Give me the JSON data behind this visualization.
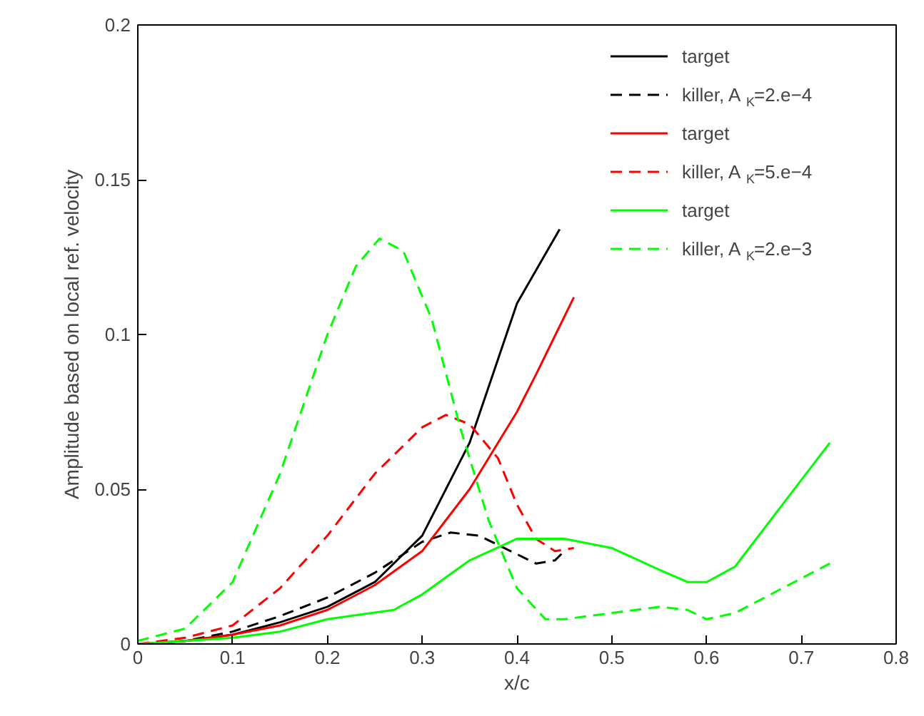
{
  "chart_data": {
    "type": "line",
    "xlabel": "x/c",
    "ylabel": "Amplitude based on local ref. velocity",
    "xlim": [
      0,
      0.8
    ],
    "ylim": [
      0,
      0.2
    ],
    "xticks": [
      0,
      0.1,
      0.2,
      0.3,
      0.4,
      0.5,
      0.6,
      0.7,
      0.8
    ],
    "yticks": [
      0,
      0.05,
      0.1,
      0.15,
      0.2
    ],
    "grid": false,
    "legend": "top right",
    "series": [
      {
        "name": "target",
        "color": "#000000",
        "line_style": "solid",
        "x": [
          0,
          0.05,
          0.1,
          0.15,
          0.2,
          0.25,
          0.3,
          0.35,
          0.4,
          0.445
        ],
        "values": [
          0,
          0.001,
          0.003,
          0.007,
          0.012,
          0.02,
          0.035,
          0.065,
          0.11,
          0.134
        ]
      },
      {
        "name": "killer, A$_{K}$=2.e−4",
        "color": "#000000",
        "line_style": "dashed",
        "x": [
          0,
          0.05,
          0.1,
          0.15,
          0.2,
          0.25,
          0.3,
          0.33,
          0.36,
          0.4,
          0.42,
          0.44,
          0.45
        ],
        "values": [
          0,
          0.001,
          0.004,
          0.009,
          0.015,
          0.023,
          0.033,
          0.036,
          0.035,
          0.029,
          0.026,
          0.027,
          0.03
        ]
      },
      {
        "name": "target",
        "color": "#ff0000",
        "line_style": "solid",
        "x": [
          0,
          0.05,
          0.1,
          0.15,
          0.2,
          0.25,
          0.3,
          0.35,
          0.4,
          0.42,
          0.46
        ],
        "values": [
          0,
          0.001,
          0.003,
          0.006,
          0.011,
          0.019,
          0.03,
          0.05,
          0.075,
          0.087,
          0.112
        ]
      },
      {
        "name": "killer, A$_{K}$=5.e−4",
        "color": "#ff0000",
        "line_style": "dashed",
        "x": [
          0,
          0.05,
          0.1,
          0.15,
          0.2,
          0.25,
          0.3,
          0.325,
          0.35,
          0.38,
          0.4,
          0.42,
          0.44,
          0.46
        ],
        "values": [
          0,
          0.002,
          0.006,
          0.018,
          0.035,
          0.055,
          0.07,
          0.074,
          0.071,
          0.06,
          0.045,
          0.034,
          0.03,
          0.031
        ]
      },
      {
        "name": "target",
        "color": "#00ff00",
        "line_style": "solid",
        "x": [
          0,
          0.05,
          0.1,
          0.15,
          0.2,
          0.27,
          0.3,
          0.35,
          0.4,
          0.45,
          0.5,
          0.55,
          0.58,
          0.6,
          0.63,
          0.68,
          0.73
        ],
        "values": [
          0,
          0.001,
          0.002,
          0.004,
          0.008,
          0.011,
          0.016,
          0.027,
          0.034,
          0.034,
          0.031,
          0.024,
          0.02,
          0.02,
          0.025,
          0.045,
          0.065
        ]
      },
      {
        "name": "killer, A$_{K}$=2.e−3",
        "color": "#00ff00",
        "line_style": "dashed",
        "x": [
          0,
          0.05,
          0.1,
          0.15,
          0.2,
          0.23,
          0.255,
          0.28,
          0.31,
          0.34,
          0.37,
          0.4,
          0.43,
          0.45,
          0.5,
          0.55,
          0.58,
          0.6,
          0.63,
          0.68,
          0.73
        ],
        "values": [
          0.001,
          0.005,
          0.02,
          0.055,
          0.1,
          0.122,
          0.131,
          0.127,
          0.105,
          0.07,
          0.04,
          0.018,
          0.008,
          0.008,
          0.01,
          0.012,
          0.011,
          0.008,
          0.01,
          0.018,
          0.026
        ]
      }
    ]
  }
}
